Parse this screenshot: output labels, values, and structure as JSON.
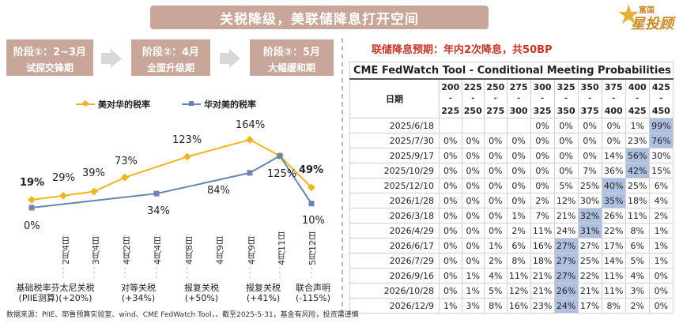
{
  "title": "关税降级，美联储降息打开空间",
  "logo": {
    "line1": "富国",
    "line2": "星投顾"
  },
  "phases": [
    {
      "label": "阶段①：2~3月",
      "sub": "试探交锋期"
    },
    {
      "label": "阶段②：4月",
      "sub": "全面升级期"
    },
    {
      "label": "阶段③：5月",
      "sub": "大幅缓和期"
    }
  ],
  "source": "数据来源：PIIE、耶鲁预算实验室、wind、CME FedWatch Tool，，截至2025-5-31，基金有风险，投资需谨慎",
  "chart_data": {
    "type": "line",
    "x": [
      "2月4日",
      "3月4日",
      "4月2日",
      "4月4日",
      "4月8日",
      "4月9日",
      "4月9日",
      "4月11日",
      "5月12日"
    ],
    "series": [
      {
        "name": "美对华的税率",
        "values": [
          19,
          29,
          39,
          73,
          null,
          123,
          164,
          125,
          49
        ],
        "color": "#f0b323"
      },
      {
        "name": "华对美的税率",
        "values": [
          0,
          null,
          null,
          null,
          34,
          84,
          null,
          125,
          10
        ],
        "color": "#6b86ad"
      }
    ],
    "labels_series1": [
      "19%",
      "29%",
      "39%",
      "73%",
      "123%",
      "164%",
      "125%",
      "49%"
    ],
    "labels_series2": [
      "0%",
      "34%",
      "84%",
      "10%"
    ],
    "categories": [
      {
        "line1": "基础税率芬太尼关税",
        "line2": "(PIIE测算)(+20%)"
      },
      {
        "line1": "对等关税",
        "line2": "(+34%)"
      },
      {
        "line1": "报复关税",
        "line2": "(+50%)"
      },
      {
        "line1": "报复关税",
        "line2": "(+41%)"
      },
      {
        "line1": "联合声明",
        "line2": "(-115%)"
      }
    ]
  },
  "fedwatch": {
    "subtitle": "联储降息预期：年内2次降息，共50BP",
    "caption": "CME FedWatch Tool - Conditional Meeting Probabilities",
    "date_header": "日期",
    "ranges": [
      {
        "top": "200",
        "bottom": "225"
      },
      {
        "top": "225",
        "bottom": "250"
      },
      {
        "top": "250",
        "bottom": "275"
      },
      {
        "top": "275",
        "bottom": "300"
      },
      {
        "top": "300",
        "bottom": "325"
      },
      {
        "top": "325",
        "bottom": "350"
      },
      {
        "top": "350",
        "bottom": "375"
      },
      {
        "top": "375",
        "bottom": "400"
      },
      {
        "top": "400",
        "bottom": "425"
      },
      {
        "top": "425",
        "bottom": "450"
      }
    ],
    "rows": [
      {
        "date": "2025/6/18",
        "cells": [
          "",
          "",
          "",
          "",
          "0%",
          "0%",
          "0%",
          "0%",
          "1%",
          "99%"
        ],
        "hl": 9
      },
      {
        "date": "2025/7/30",
        "cells": [
          "0%",
          "0%",
          "0%",
          "0%",
          "0%",
          "0%",
          "0%",
          "0%",
          "23%",
          "76%"
        ],
        "hl": 9
      },
      {
        "date": "2025/9/17",
        "cells": [
          "0%",
          "0%",
          "0%",
          "0%",
          "0%",
          "0%",
          "0%",
          "14%",
          "56%",
          "30%"
        ],
        "hl": 8
      },
      {
        "date": "2025/10/29",
        "cells": [
          "0%",
          "0%",
          "0%",
          "0%",
          "0%",
          "0%",
          "7%",
          "36%",
          "42%",
          "15%"
        ],
        "hl": 8
      },
      {
        "date": "2025/12/10",
        "cells": [
          "0%",
          "0%",
          "0%",
          "0%",
          "0%",
          "5%",
          "25%",
          "40%",
          "25%",
          "6%"
        ],
        "hl": 7
      },
      {
        "date": "2026/1/28",
        "cells": [
          "0%",
          "0%",
          "0%",
          "0%",
          "2%",
          "12%",
          "30%",
          "35%",
          "18%",
          "4%"
        ],
        "hl": 7
      },
      {
        "date": "2026/3/18",
        "cells": [
          "0%",
          "0%",
          "0%",
          "1%",
          "7%",
          "21%",
          "32%",
          "26%",
          "11%",
          "2%"
        ],
        "hl": 6
      },
      {
        "date": "2026/4/29",
        "cells": [
          "0%",
          "0%",
          "0%",
          "2%",
          "11%",
          "24%",
          "31%",
          "22%",
          "8%",
          "1%"
        ],
        "hl": 6
      },
      {
        "date": "2026/6/17",
        "cells": [
          "0%",
          "0%",
          "1%",
          "6%",
          "16%",
          "27%",
          "27%",
          "17%",
          "6%",
          "1%"
        ],
        "hl": 5
      },
      {
        "date": "2026/7/29",
        "cells": [
          "0%",
          "0%",
          "2%",
          "8%",
          "18%",
          "27%",
          "25%",
          "14%",
          "5%",
          "1%"
        ],
        "hl": 5
      },
      {
        "date": "2026/9/16",
        "cells": [
          "0%",
          "1%",
          "4%",
          "11%",
          "21%",
          "27%",
          "22%",
          "11%",
          "4%",
          "0%"
        ],
        "hl": 5
      },
      {
        "date": "2026/10/28",
        "cells": [
          "0%",
          "1%",
          "5%",
          "12%",
          "21%",
          "26%",
          "21%",
          "11%",
          "3%",
          "0%"
        ],
        "hl": 5
      },
      {
        "date": "2026/12/9",
        "cells": [
          "1%",
          "3%",
          "8%",
          "16%",
          "23%",
          "24%",
          "17%",
          "8%",
          "2%",
          "0%"
        ],
        "hl": 5
      }
    ]
  }
}
